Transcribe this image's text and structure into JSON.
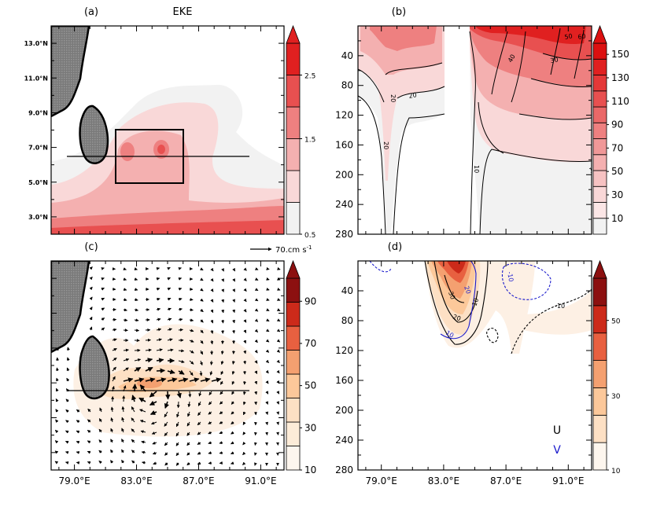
{
  "title": "EKE",
  "panels": [
    {
      "label": "(a)",
      "type": "filled-contour-map",
      "y_ticks": [
        "13.0°N",
        "11.0°N",
        "9.0°N",
        "7.0°N",
        "5.0°N",
        "3.0°N"
      ],
      "colorbar": {
        "labels": [
          "2.5",
          "1.5",
          "0.5"
        ],
        "colors": [
          "#f2f2f2",
          "#f9d8d8",
          "#f4b0b0",
          "#ee8080",
          "#e85050",
          "#e02020"
        ]
      }
    },
    {
      "label": "(b)",
      "type": "contour-section",
      "y_ticks": [
        "40",
        "80",
        "120",
        "160",
        "200",
        "240",
        "280"
      ],
      "contour_labels": [
        "10",
        "20",
        "30",
        "40",
        "50",
        "60"
      ],
      "colorbar": {
        "labels": [
          "150",
          "130",
          "110",
          "90",
          "70",
          "50",
          "30",
          "10"
        ]
      }
    },
    {
      "label": "(c)",
      "type": "vector-map",
      "y_ticks": [],
      "x_ticks": [
        "79.0°E",
        "83.0°E",
        "87.0°E",
        "91.0°E"
      ],
      "reference_vector": "70.cm s",
      "reference_vector_exponent": "-1",
      "colorbar": {
        "labels": [
          "90",
          "70",
          "50",
          "30",
          "10"
        ]
      }
    },
    {
      "label": "(d)",
      "type": "contour-section",
      "y_ticks": [
        "40",
        "80",
        "120",
        "160",
        "200",
        "240",
        "280"
      ],
      "x_ticks": [
        "79.0°E",
        "83.0°E",
        "87.0°E",
        "91.0°E"
      ],
      "contour_labels": [
        "10",
        "20",
        "30",
        "-10"
      ],
      "legend": [
        {
          "name": "U",
          "color": "#000000"
        },
        {
          "name": "V",
          "color": "#1a1acc"
        }
      ],
      "colorbar": {
        "labels": [
          "50",
          "30",
          "10"
        ]
      }
    }
  ],
  "chart_data": {
    "type": "heatmap",
    "x_range": [
      77.5,
      92.5
    ],
    "x_ticks": [
      79,
      83,
      87,
      91
    ],
    "lat_range": [
      2,
      14
    ],
    "depth_range": [
      0,
      280
    ],
    "section_latitude": 6.5,
    "box": {
      "lon": [
        82.5,
        87.0
      ],
      "lat": [
        5.0,
        8.0
      ]
    },
    "panel_b_color_levels": [
      10,
      30,
      50,
      70,
      90,
      110,
      130,
      150
    ],
    "panel_c_color_levels": [
      10,
      30,
      50,
      70,
      90
    ],
    "panel_d_color_levels": [
      10,
      30,
      50
    ]
  }
}
